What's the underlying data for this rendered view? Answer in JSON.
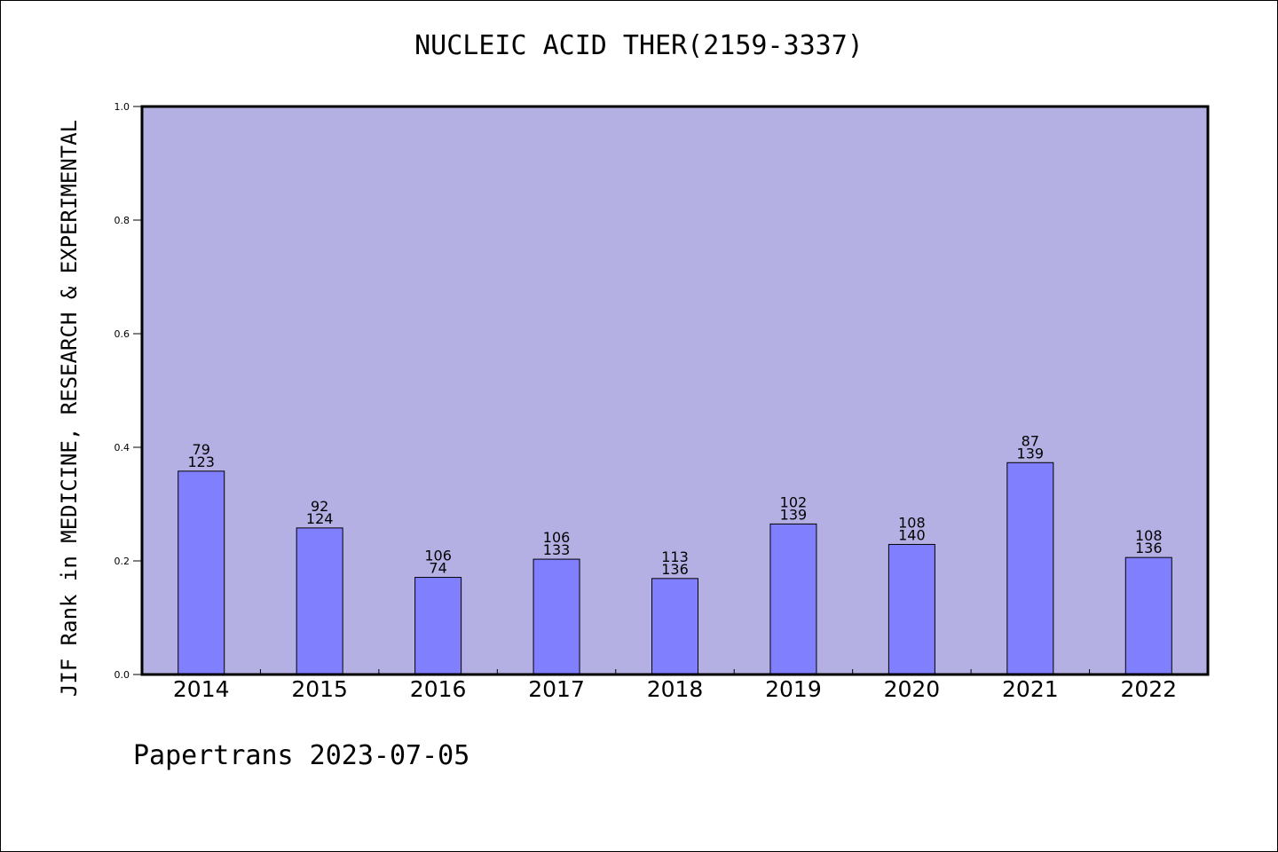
{
  "chart_data": {
    "type": "bar",
    "title": "NUCLEIC ACID THER(2159-3337)",
    "ylabel": "JIF Rank in MEDICINE, RESEARCH & EXPERIMENTAL",
    "xlabel": "",
    "categories": [
      "2014",
      "2015",
      "2016",
      "2017",
      "2018",
      "2019",
      "2020",
      "2021",
      "2022"
    ],
    "values": [
      0.358,
      0.258,
      0.171,
      0.203,
      0.169,
      0.265,
      0.229,
      0.373,
      0.206
    ],
    "label_top": [
      "79",
      "92",
      "106",
      "106",
      "113",
      "102",
      "108",
      "87",
      "108"
    ],
    "label_bottom": [
      "123",
      "124",
      "74",
      "133",
      "136",
      "139",
      "140",
      "139",
      "136"
    ],
    "ylim": [
      0,
      1.0
    ],
    "yticks": [
      "0.0",
      "0.2",
      "0.4",
      "0.6",
      "0.8",
      "1.0"
    ],
    "grid": false,
    "colors": {
      "plot_bg": "#b5b0e3",
      "bar": "#8080ff"
    }
  },
  "footer": "Papertrans 2023-07-05"
}
